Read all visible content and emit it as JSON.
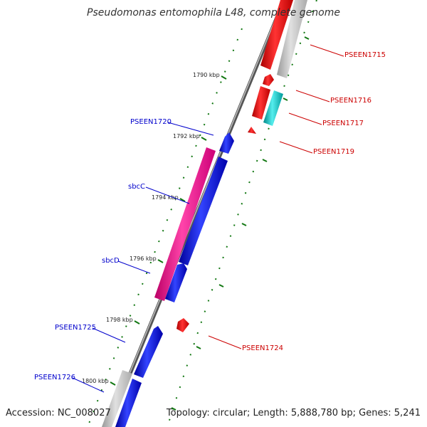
{
  "title": "Pseudomonas entomophila L48, complete genome",
  "accession": "Accession: NC_008027",
  "summary": "Topology: circular; Length: 5,888,780 bp; Genes: 5,241",
  "colors": {
    "backbone": "#888888",
    "forward_gene": "#0000ee",
    "reverse_gene": "#ee0000",
    "pink_gene": "#ee1188",
    "cyan_gene": "#11cccc",
    "gray_gene": "#bbbbbb",
    "ticks": "#117711",
    "label_left": "#0000cc",
    "label_right": "#cc0000"
  },
  "axis": {
    "ticks": [
      "1790 kbp",
      "1792 kbp",
      "1794 kbp",
      "1796 kbp",
      "1798 kbp",
      "1800 kbp"
    ]
  },
  "genes": {
    "left": [
      "PSEEN1720",
      "sbcC",
      "sbcD",
      "PSEEN1725",
      "PSEEN1726"
    ],
    "right": [
      "PSEEN1715",
      "PSEEN1716",
      "PSEEN1717",
      "PSEEN1719",
      "PSEEN1724"
    ]
  }
}
